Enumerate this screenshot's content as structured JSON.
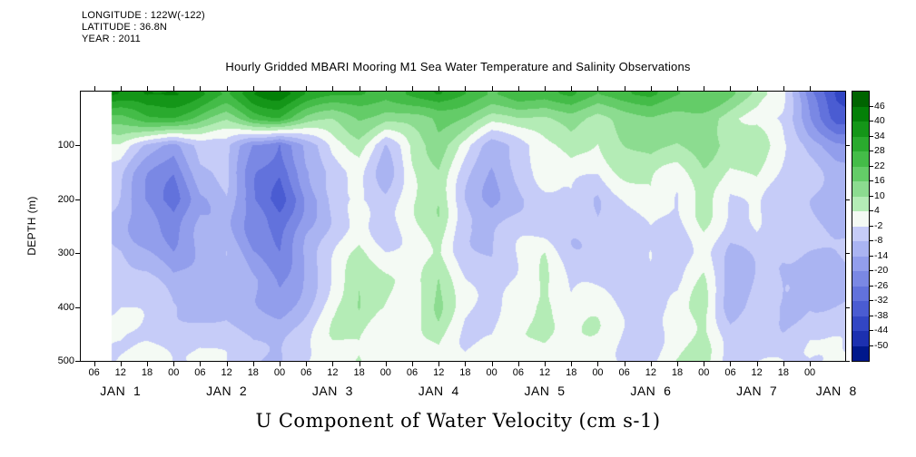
{
  "header": {
    "longitude": "LONGITUDE : 122W(-122)",
    "latitude": "LATITUDE : 36.8N",
    "year": "YEAR : 2011"
  },
  "title": "Hourly Gridded MBARI Mooring M1 Sea Water Temperature and Salinity Observations",
  "xlabel": "U Component of Water Velocity (cm s-1)",
  "ylabel": "DEPTH (m)",
  "chart_data": {
    "type": "heatmap",
    "title": "Hourly Gridded MBARI Mooring M1 Sea Water Temperature and Salinity Observations",
    "units": "cm s-1",
    "x_axis": {
      "range_hours": [
        3,
        176
      ],
      "tick_hours": [
        6,
        12,
        18,
        24,
        30,
        36,
        42,
        48,
        54,
        60,
        66,
        72,
        78,
        84,
        90,
        96,
        102,
        108,
        114,
        120,
        126,
        132,
        138,
        144,
        150,
        156,
        162,
        168
      ],
      "tick_labels": [
        "06",
        "12",
        "18",
        "00",
        "06",
        "12",
        "18",
        "00",
        "06",
        "12",
        "18",
        "00",
        "06",
        "12",
        "18",
        "00",
        "06",
        "12",
        "18",
        "00",
        "06",
        "12",
        "18",
        "00",
        "06",
        "12",
        "18",
        "00"
      ],
      "day_label_hours": [
        12,
        36,
        60,
        84,
        108,
        132,
        156,
        174
      ],
      "day_labels": [
        "JAN  1",
        "JAN  2",
        "JAN  3",
        "JAN  4",
        "JAN  5",
        "JAN  6",
        "JAN  7",
        "JAN  8"
      ]
    },
    "y_axis": {
      "label": "DEPTH (m)",
      "range": [
        0,
        500
      ],
      "tick_depths": [
        100,
        200,
        300,
        400,
        500
      ],
      "tick_labels": [
        "100",
        "200",
        "300",
        "400",
        "500"
      ]
    },
    "colorbar": {
      "tick_labels_top_to_bottom": [
        "46",
        "40",
        "34",
        "28",
        "22",
        "16",
        "10",
        "4",
        "-2",
        "-8",
        "-14",
        "-20",
        "-26",
        "-32",
        "-38",
        "-44",
        "-50"
      ],
      "levels_low_to_high": [
        -50,
        -44,
        -38,
        -32,
        -26,
        -20,
        -14,
        -8,
        -2,
        4,
        10,
        16,
        22,
        28,
        34,
        40,
        46
      ],
      "colors_low_to_high": [
        "#00188c",
        "#1c30b0",
        "#3246c4",
        "#4a5cd2",
        "#6272dc",
        "#7a88e4",
        "#929eec",
        "#aab4f2",
        "#c6ccf8",
        "#f4faf4",
        "#b4ecb6",
        "#8cdc90",
        "#64cc68",
        "#44bc48",
        "#2aaa2e",
        "#149618",
        "#048008",
        "#006400"
      ]
    },
    "grid": {
      "data_start_hour": 10,
      "col_hours": [
        12,
        18,
        24,
        30,
        36,
        42,
        48,
        54,
        60,
        66,
        72,
        78,
        84,
        90,
        96,
        102,
        108,
        114,
        120,
        126,
        132,
        138,
        144,
        150,
        156,
        162,
        168,
        174
      ],
      "row_depths": [
        5,
        50,
        100,
        150,
        200,
        250,
        300,
        350,
        400,
        450,
        500
      ],
      "values": [
        [
          36,
          40,
          38,
          34,
          28,
          38,
          42,
          36,
          32,
          30,
          26,
          30,
          34,
          28,
          22,
          26,
          22,
          26,
          20,
          24,
          28,
          22,
          18,
          14,
          10,
          2,
          -24,
          -36
        ],
        [
          18,
          24,
          22,
          16,
          12,
          22,
          26,
          18,
          14,
          16,
          12,
          16,
          18,
          14,
          8,
          12,
          10,
          14,
          8,
          12,
          14,
          10,
          8,
          4,
          2,
          -6,
          -20,
          -30
        ],
        [
          2,
          -10,
          -20,
          -8,
          -4,
          -22,
          -30,
          -12,
          0,
          6,
          -6,
          8,
          12,
          2,
          -8,
          -4,
          4,
          8,
          2,
          8,
          12,
          8,
          10,
          4,
          6,
          -4,
          -12,
          -18
        ],
        [
          -4,
          -16,
          -26,
          -12,
          -8,
          -28,
          -36,
          -18,
          -8,
          0,
          -10,
          4,
          10,
          -2,
          -12,
          -8,
          0,
          4,
          -2,
          4,
          8,
          4,
          8,
          0,
          4,
          -6,
          -10,
          -14
        ],
        [
          -6,
          -18,
          -30,
          -14,
          -10,
          -30,
          -38,
          -20,
          -10,
          -4,
          -8,
          0,
          8,
          -6,
          -14,
          -10,
          -4,
          0,
          -6,
          0,
          6,
          0,
          6,
          -2,
          2,
          -8,
          -10,
          -12
        ],
        [
          -6,
          -14,
          -24,
          -12,
          -10,
          -26,
          -32,
          -16,
          -8,
          0,
          -6,
          -2,
          6,
          -8,
          -12,
          -8,
          -6,
          -4,
          -8,
          -2,
          4,
          -2,
          4,
          -4,
          0,
          -8,
          -8,
          -10
        ],
        [
          -4,
          -10,
          -18,
          -10,
          -8,
          -20,
          -24,
          -12,
          -4,
          6,
          -2,
          -4,
          4,
          -6,
          -10,
          -6,
          2,
          -6,
          -6,
          -4,
          2,
          -4,
          2,
          -6,
          -2,
          -6,
          -8,
          -8
        ],
        [
          -4,
          -8,
          -14,
          -8,
          -8,
          -14,
          -18,
          -8,
          0,
          10,
          4,
          -2,
          8,
          -4,
          -8,
          -4,
          6,
          -4,
          -4,
          -2,
          -2,
          -6,
          4,
          -8,
          -4,
          -8,
          -6,
          -6
        ],
        [
          -2,
          -6,
          -10,
          -8,
          -6,
          -12,
          -14,
          -6,
          4,
          12,
          6,
          0,
          10,
          -2,
          -6,
          -2,
          8,
          -2,
          -2,
          -4,
          -6,
          -4,
          6,
          -10,
          -6,
          -10,
          -4,
          -4
        ],
        [
          -2,
          -4,
          -8,
          -6,
          -6,
          -10,
          -10,
          -4,
          6,
          10,
          4,
          0,
          8,
          0,
          -4,
          0,
          6,
          0,
          -2,
          -4,
          -4,
          -2,
          4,
          -8,
          -8,
          -8,
          -2,
          -2
        ],
        [
          0,
          -2,
          -6,
          -4,
          -4,
          -8,
          -8,
          -2,
          4,
          8,
          2,
          0,
          6,
          0,
          -2,
          0,
          4,
          0,
          -2,
          -2,
          -4,
          0,
          4,
          -6,
          -6,
          -6,
          -2,
          0
        ]
      ]
    }
  }
}
